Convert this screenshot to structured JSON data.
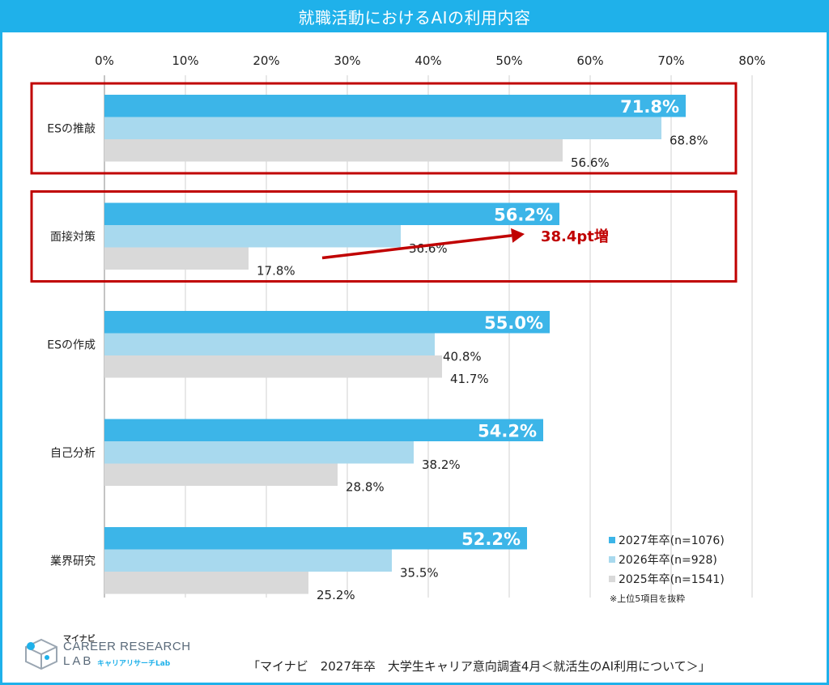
{
  "title": "就職活動におけるAIの利用内容",
  "chart_data": {
    "type": "bar",
    "orientation": "horizontal",
    "xlim": [
      0,
      80
    ],
    "ticks": [
      "0%",
      "10%",
      "20%",
      "30%",
      "40%",
      "50%",
      "60%",
      "70%",
      "80%"
    ],
    "grid": true,
    "categories": [
      "ESの推敲",
      "面接対策",
      "ESの作成",
      "自己分析",
      "業界研究"
    ],
    "series": [
      {
        "name": "2027年卒(n=1076)",
        "color": "#3cb5e8",
        "values": [
          71.8,
          56.2,
          55.0,
          54.2,
          52.2
        ],
        "labels": [
          "71.8%",
          "56.2%",
          "55.0%",
          "54.2%",
          "52.2%"
        ]
      },
      {
        "name": "2026年卒(n=928)",
        "color": "#a8d9ee",
        "values": [
          68.8,
          36.6,
          40.8,
          38.2,
          35.5
        ],
        "labels": [
          "68.8%",
          "36.6%",
          "40.8%",
          "38.2%",
          "35.5%"
        ]
      },
      {
        "name": "2025年卒(n=1541)",
        "color": "#d9d9d9",
        "values": [
          56.6,
          17.8,
          41.7,
          28.8,
          25.2
        ],
        "labels": [
          "56.6%",
          "17.8%",
          "41.7%",
          "28.8%",
          "25.2%"
        ]
      }
    ],
    "highlighted_categories": [
      "ESの推敲",
      "面接対策"
    ],
    "highlight_color": "#c00000",
    "annotation": {
      "text": "38.4pt増",
      "category": "面接対策",
      "from_value": 17.8,
      "to_value": 56.2,
      "color": "#c00000"
    }
  },
  "legend_note": "※上位5項目を抜粋",
  "logo": {
    "brand": "マイナビ",
    "name": "CAREER RESEARCH",
    "lab": "LAB",
    "sub": "キャリアリサーチLab"
  },
  "source": "「マイナビ　2027年卒　大学生キャリア意向調査4月＜就活生のAI利用について＞」"
}
